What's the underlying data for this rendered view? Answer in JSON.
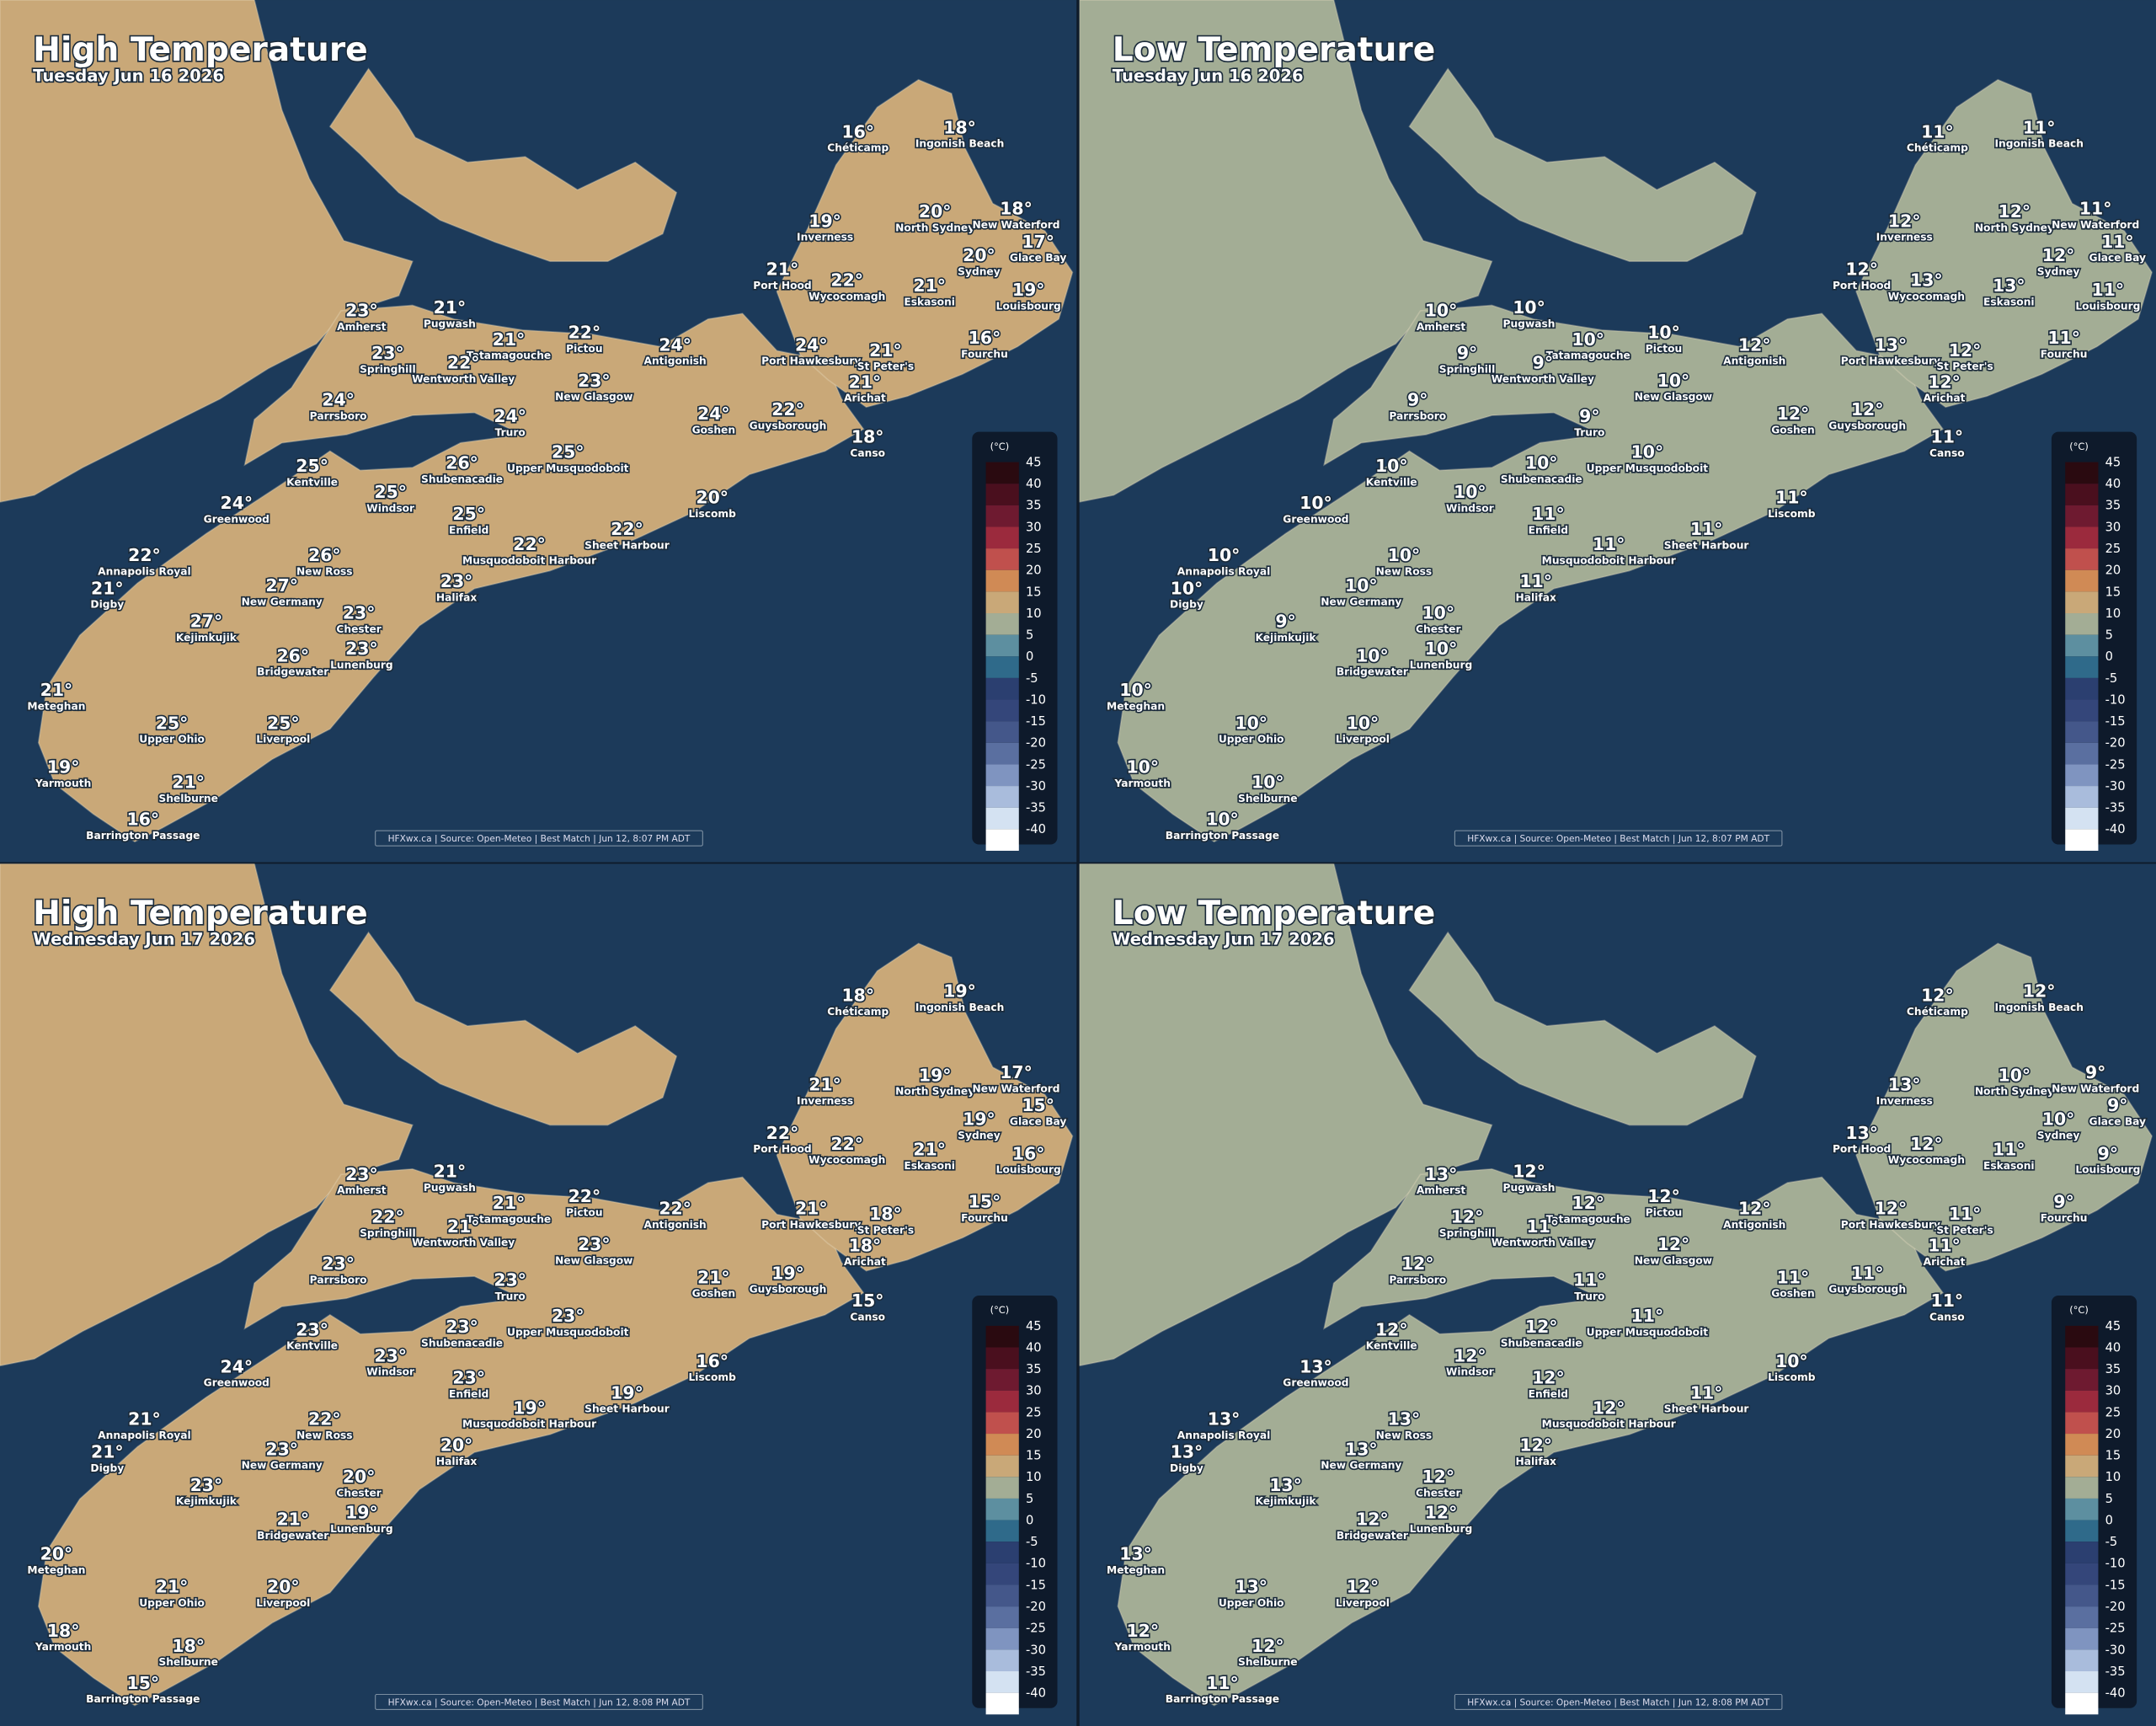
{
  "towns": [
    "Chéticamp",
    "Ingonish Beach",
    "Inverness",
    "North Sydney",
    "New Waterford",
    "Glace Bay",
    "Sydney",
    "Port Hood",
    "Wycocomagh",
    "Eskasoni",
    "Louisbourg",
    "Amherst",
    "Pugwash",
    "Pictou",
    "Tatamagouche",
    "Antigonish",
    "Springhill",
    "Wentworth Valley",
    "Port Hawkesbury",
    "St Peter's",
    "Fourchu",
    "Arichat",
    "New Glasgow",
    "Parrsboro",
    "Goshen",
    "Guysborough",
    "Truro",
    "Canso",
    "Kentville",
    "Shubenacadie",
    "Upper Musquodoboit",
    "Windsor",
    "Greenwood",
    "Enfield",
    "Liscomb",
    "Annapolis Royal",
    "Musquodoboit Harbour",
    "Sheet Harbour",
    "New Ross",
    "Digby",
    "New Germany",
    "Halifax",
    "Chester",
    "Kejimkujik",
    "Lunenburg",
    "Bridgewater",
    "Meteghan",
    "Upper Ohio",
    "Liverpool",
    "Yarmouth",
    "Shelburne",
    "Barrington Passage"
  ],
  "legend": {
    "unit": "(°C)",
    "values": [
      45,
      40,
      35,
      30,
      25,
      20,
      15,
      10,
      5,
      0,
      -5,
      -10,
      -15,
      -20,
      -25,
      -30,
      -35,
      -40
    ],
    "colors": [
      "#2a0a10",
      "#4a0f1e",
      "#6e1a30",
      "#9b2a3d",
      "#c0504d",
      "#d08a55",
      "#c9a878",
      "#a3ad95",
      "#5d8fa0",
      "#2f6a8a",
      "#2b3f70",
      "#34467a",
      "#44578a",
      "#5a6fa0",
      "#7f94c0",
      "#a9bcdc",
      "#d4e2f2",
      "#ffffff"
    ]
  },
  "panels": [
    {
      "title": "High Temperature",
      "subtitle": "Tuesday Jun 16 2026",
      "source": "HFXwx.ca | Source: Open-Meteo | Best Match | Jun 12, 8:07 PM ADT",
      "temps": [
        "16°",
        "18°",
        "19°",
        "20°",
        "18°",
        "17°",
        "20°",
        "21°",
        "22°",
        "21°",
        "19°",
        "23°",
        "21°",
        "22°",
        "21°",
        "24°",
        "23°",
        "22°",
        "24°",
        "21°",
        "16°",
        "21°",
        "23°",
        "24°",
        "24°",
        "22°",
        "24°",
        "18°",
        "25°",
        "26°",
        "25°",
        "25°",
        "24°",
        "25°",
        "20°",
        "22°",
        "22°",
        "22°",
        "26°",
        "21°",
        "27°",
        "23°",
        "23°",
        "27°",
        "23°",
        "26°",
        "21°",
        "25°",
        "25°",
        "19°",
        "21°",
        "16°"
      ]
    },
    {
      "title": "Low Temperature",
      "subtitle": "Tuesday Jun 16 2026",
      "source": "HFXwx.ca | Source: Open-Meteo | Best Match | Jun 12, 8:07 PM ADT",
      "temps": [
        "11°",
        "11°",
        "12°",
        "12°",
        "11°",
        "11°",
        "12°",
        "12°",
        "13°",
        "13°",
        "11°",
        "10°",
        "10°",
        "10°",
        "10°",
        "12°",
        "9°",
        "9°",
        "13°",
        "12°",
        "11°",
        "12°",
        "10°",
        "9°",
        "12°",
        "12°",
        "9°",
        "11°",
        "10°",
        "10°",
        "10°",
        "10°",
        "10°",
        "11°",
        "11°",
        "10°",
        "11°",
        "11°",
        "10°",
        "10°",
        "10°",
        "11°",
        "10°",
        "9°",
        "10°",
        "10°",
        "10°",
        "10°",
        "10°",
        "10°",
        "10°",
        "10°"
      ]
    },
    {
      "title": "High Temperature",
      "subtitle": "Wednesday Jun 17 2026",
      "source": "HFXwx.ca | Source: Open-Meteo | Best Match | Jun 12, 8:08 PM ADT",
      "temps": [
        "18°",
        "19°",
        "21°",
        "19°",
        "17°",
        "15°",
        "19°",
        "22°",
        "22°",
        "21°",
        "16°",
        "23°",
        "21°",
        "22°",
        "21°",
        "22°",
        "22°",
        "21°",
        "21°",
        "18°",
        "15°",
        "18°",
        "23°",
        "23°",
        "21°",
        "19°",
        "23°",
        "15°",
        "23°",
        "23°",
        "23°",
        "23°",
        "24°",
        "23°",
        "16°",
        "21°",
        "19°",
        "19°",
        "22°",
        "21°",
        "23°",
        "20°",
        "20°",
        "23°",
        "19°",
        "21°",
        "20°",
        "21°",
        "20°",
        "18°",
        "18°",
        "15°"
      ]
    },
    {
      "title": "Low Temperature",
      "subtitle": "Wednesday Jun 17 2026",
      "source": "HFXwx.ca | Source: Open-Meteo | Best Match | Jun 12, 8:08 PM ADT",
      "temps": [
        "12°",
        "12°",
        "13°",
        "10°",
        "9°",
        "9°",
        "10°",
        "13°",
        "12°",
        "11°",
        "9°",
        "13°",
        "12°",
        "12°",
        "12°",
        "12°",
        "12°",
        "11°",
        "12°",
        "11°",
        "9°",
        "11°",
        "12°",
        "12°",
        "11°",
        "11°",
        "11°",
        "11°",
        "12°",
        "12°",
        "11°",
        "12°",
        "13°",
        "12°",
        "10°",
        "13°",
        "12°",
        "11°",
        "13°",
        "13°",
        "13°",
        "12°",
        "12°",
        "13°",
        "12°",
        "12°",
        "13°",
        "13°",
        "12°",
        "12°",
        "12°",
        "11°"
      ]
    }
  ]
}
